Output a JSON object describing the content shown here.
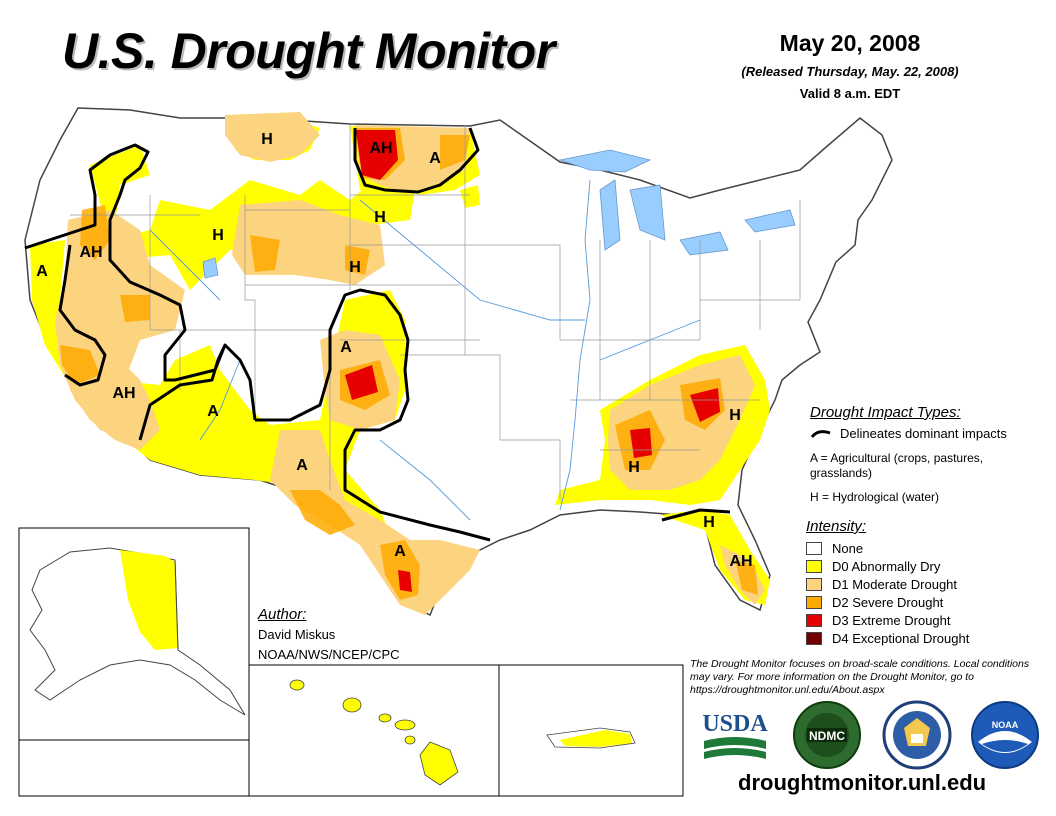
{
  "header": {
    "title": "U.S. Drought Monitor",
    "date": "May 20, 2008",
    "released": "(Released Thursday, May. 22, 2008)",
    "valid": "Valid 8 a.m. EDT"
  },
  "map_labels": [
    "H",
    "AH",
    "A",
    "H",
    "AH",
    "H",
    "H",
    "A",
    "A",
    "AH",
    "A",
    "A",
    "A",
    "H",
    "H",
    "H",
    "AH"
  ],
  "impact_types": {
    "title": "Drought Impact Types:",
    "line_label": "Delineates dominant impacts",
    "agricultural": "A = Agricultural (crops, pastures, grasslands)",
    "hydrological": "H = Hydrological (water)"
  },
  "intensity": {
    "title": "Intensity:",
    "levels": [
      {
        "label": "None",
        "color": "#ffffff"
      },
      {
        "label": "D0 Abnormally Dry",
        "color": "#ffff00"
      },
      {
        "label": "D1 Moderate Drought",
        "color": "#fcd37f"
      },
      {
        "label": "D2 Severe Drought",
        "color": "#ffaa00"
      },
      {
        "label": "D3 Extreme Drought",
        "color": "#e60000"
      },
      {
        "label": "D4 Exceptional Drought",
        "color": "#730000"
      }
    ]
  },
  "author": {
    "title": "Author:",
    "name": "David Miskus",
    "org": "NOAA/NWS/NCEP/CPC"
  },
  "note": "The Drought Monitor focuses on broad-scale conditions. Local conditions may vary. For more information on the Drought Monitor, go to https://droughtmonitor.unl.edu/About.aspx",
  "logos": {
    "usda": "USDA",
    "ndmc": "NDMC",
    "noaa": "NOAA"
  },
  "website": "droughtmonitor.unl.edu"
}
